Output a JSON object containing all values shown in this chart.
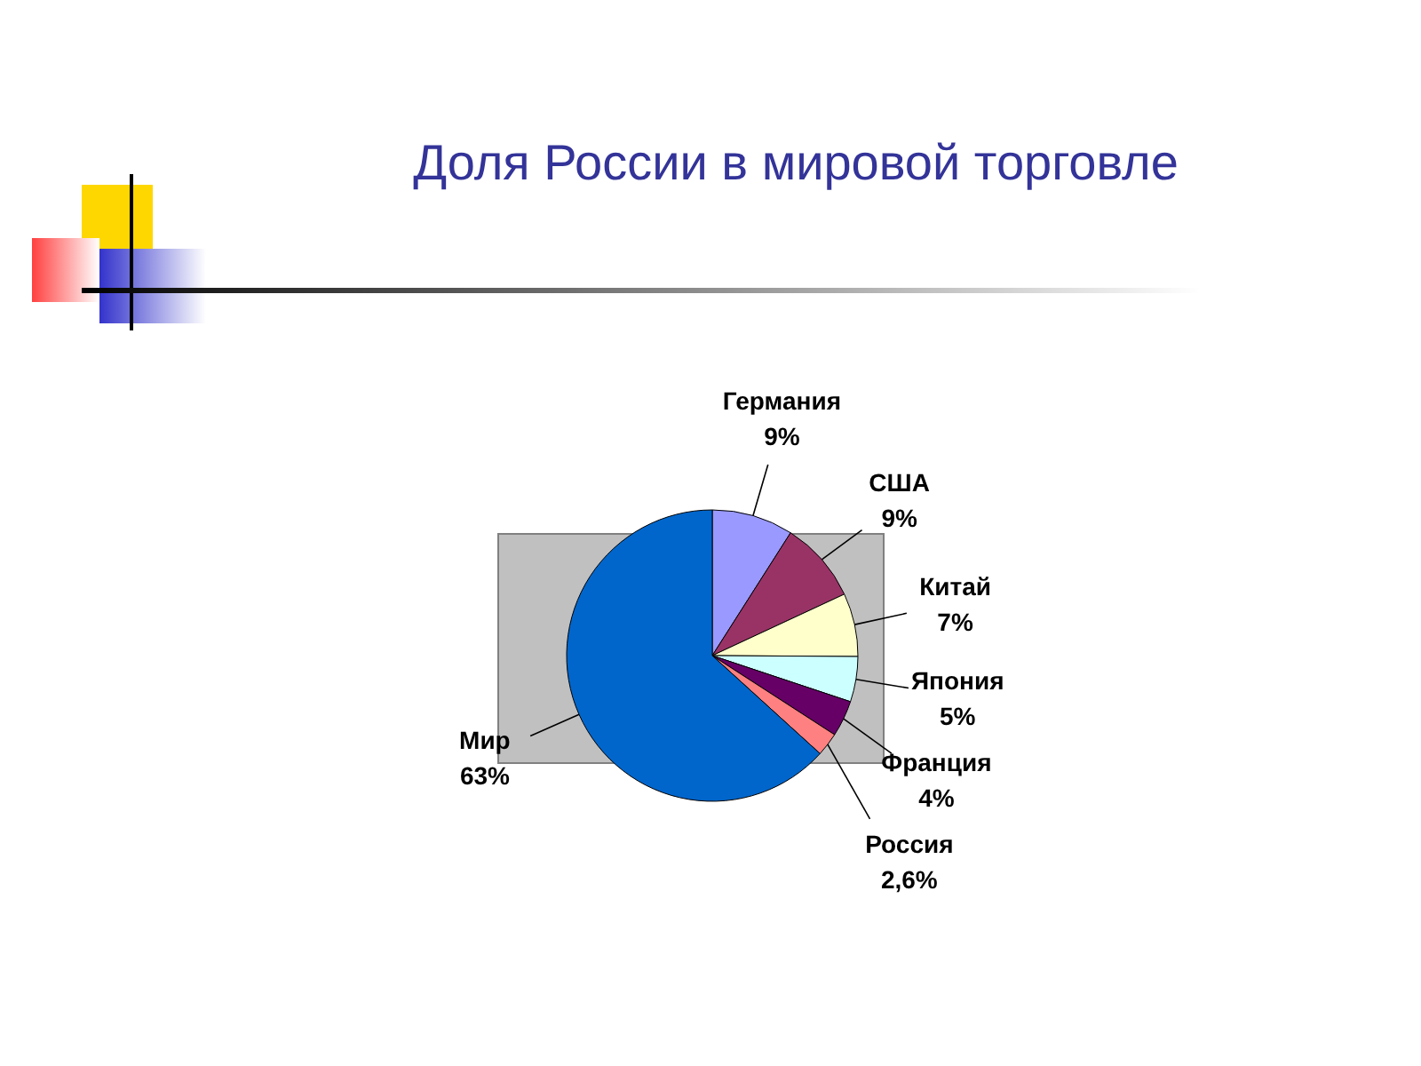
{
  "chart_data": {
    "type": "pie",
    "title": "Доля России в мировой торговле",
    "categories": [
      "Германия",
      "США",
      "Китай",
      "Япония",
      "Франция",
      "Россия",
      "Мир"
    ],
    "values": [
      9,
      9,
      7,
      5,
      4,
      2.6,
      63
    ],
    "value_labels": [
      "9%",
      "9%",
      "7%",
      "5%",
      "4%",
      "2,6%",
      "63%"
    ],
    "colors": [
      "#9999ff",
      "#993366",
      "#ffffcc",
      "#ccffff",
      "#660066",
      "#ff8080",
      "#0066cc"
    ]
  }
}
